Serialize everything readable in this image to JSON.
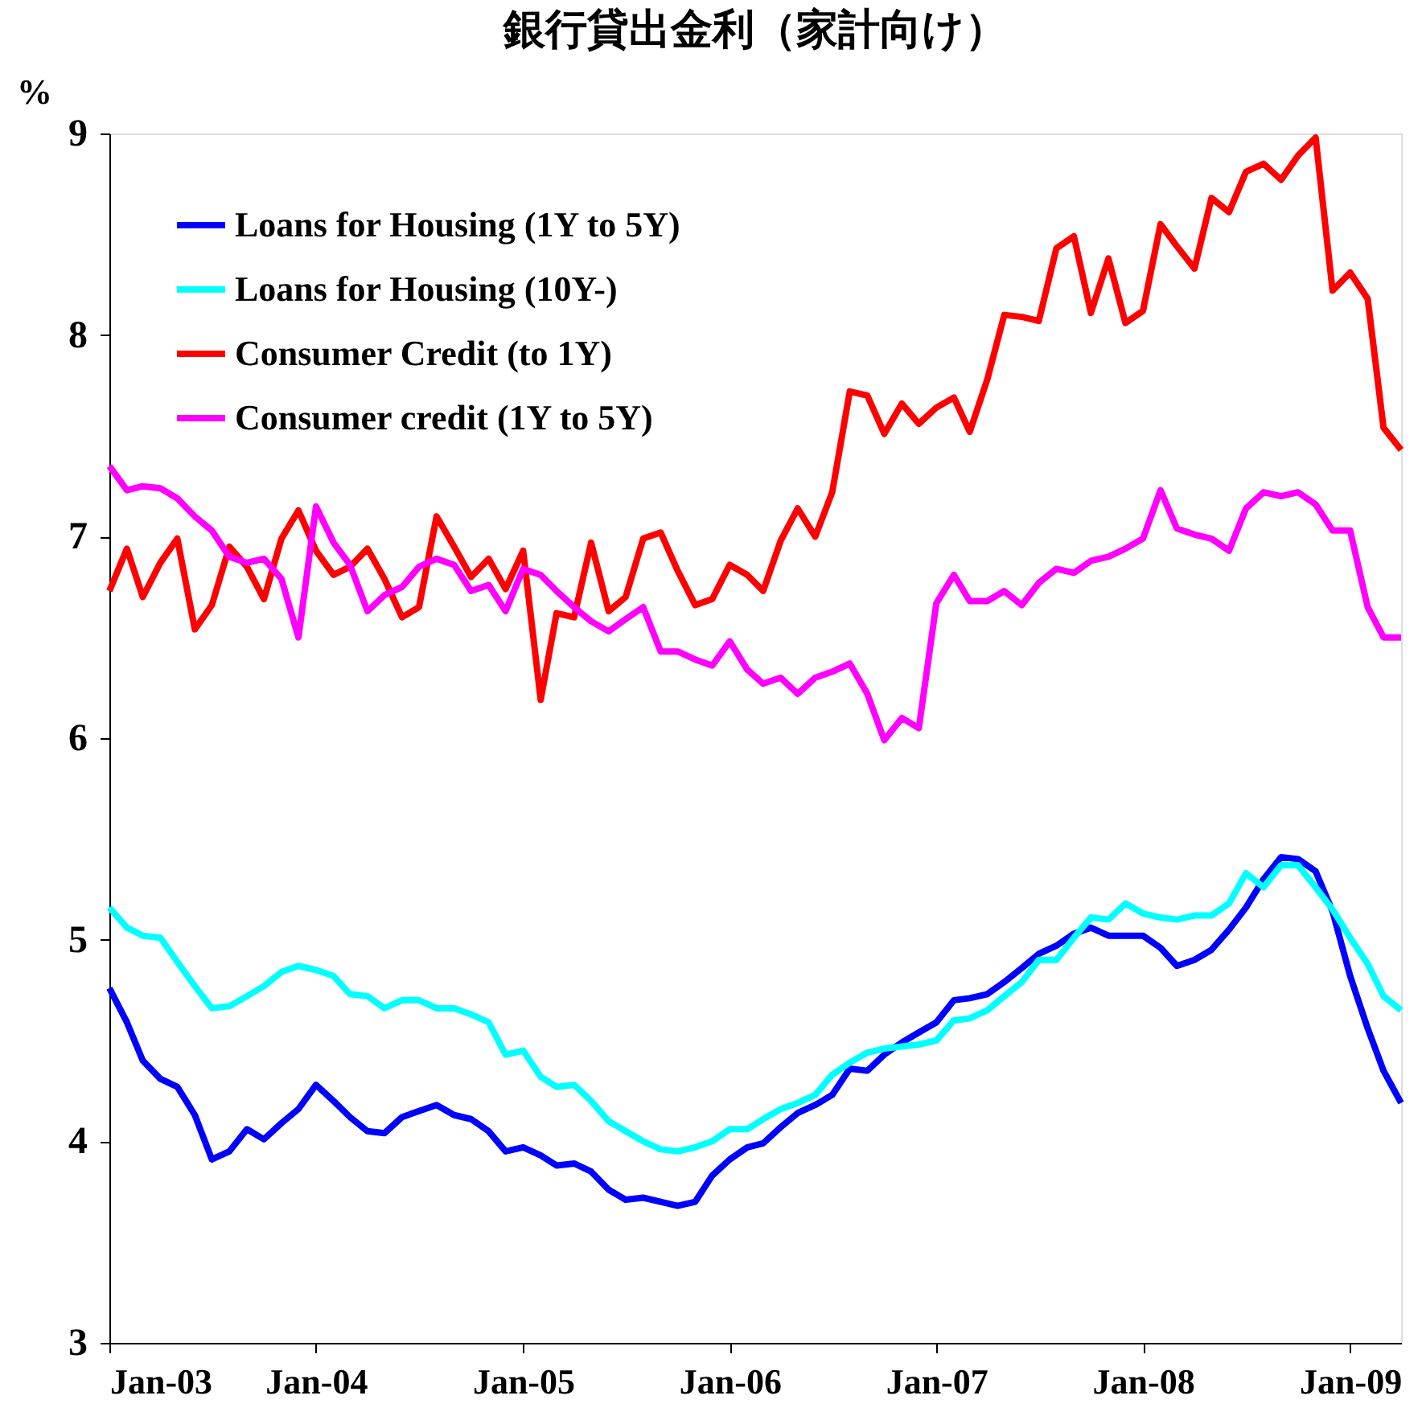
{
  "chart_data": {
    "type": "line",
    "title": "銀行貸出金利（家計向け）",
    "ylabel": "%",
    "x": [
      "2003-01",
      "2003-02",
      "2003-03",
      "2003-04",
      "2003-05",
      "2003-06",
      "2003-07",
      "2003-08",
      "2003-09",
      "2003-10",
      "2003-11",
      "2003-12",
      "2004-01",
      "2004-02",
      "2004-03",
      "2004-04",
      "2004-05",
      "2004-06",
      "2004-07",
      "2004-08",
      "2004-09",
      "2004-10",
      "2004-11",
      "2004-12",
      "2005-01",
      "2005-02",
      "2005-03",
      "2005-04",
      "2005-05",
      "2005-06",
      "2005-07",
      "2005-08",
      "2005-09",
      "2005-10",
      "2005-11",
      "2005-12",
      "2006-01",
      "2006-02",
      "2006-03",
      "2006-04",
      "2006-05",
      "2006-06",
      "2006-07",
      "2006-08",
      "2006-09",
      "2006-10",
      "2006-11",
      "2006-12",
      "2007-01",
      "2007-02",
      "2007-03",
      "2007-04",
      "2007-05",
      "2007-06",
      "2007-07",
      "2007-08",
      "2007-09",
      "2007-10",
      "2007-11",
      "2007-12",
      "2008-01",
      "2008-02",
      "2008-03",
      "2008-04",
      "2008-05",
      "2008-06",
      "2008-07",
      "2008-08",
      "2008-09",
      "2008-10",
      "2008-11",
      "2008-12",
      "2009-01",
      "2009-02",
      "2009-03",
      "2009-04"
    ],
    "series": [
      {
        "name": "Loans for Housing (1Y to 5Y)",
        "color": "#0000ff",
        "values": [
          4.76,
          4.59,
          4.4,
          4.31,
          4.27,
          4.13,
          3.91,
          3.95,
          4.06,
          4.01,
          4.09,
          4.16,
          4.28,
          4.2,
          4.12,
          4.05,
          4.04,
          4.12,
          4.15,
          4.18,
          4.13,
          4.11,
          4.05,
          3.95,
          3.97,
          3.93,
          3.88,
          3.89,
          3.85,
          3.76,
          3.71,
          3.72,
          3.7,
          3.68,
          3.7,
          3.83,
          3.91,
          3.97,
          3.99,
          4.07,
          4.14,
          4.18,
          4.23,
          4.36,
          4.35,
          4.43,
          4.49,
          4.54,
          4.59,
          4.7,
          4.71,
          4.73,
          4.79,
          4.86,
          4.93,
          4.97,
          5.03,
          5.06,
          5.02,
          5.02,
          5.02,
          4.96,
          4.87,
          4.9,
          4.95,
          5.05,
          5.16,
          5.3,
          5.41,
          5.4,
          5.34,
          5.14,
          4.82,
          4.56,
          4.35,
          4.19
        ]
      },
      {
        "name": "Loans for Housing (10Y-)",
        "color": "#00ffff",
        "values": [
          5.16,
          5.06,
          5.02,
          5.01,
          4.89,
          4.77,
          4.66,
          4.67,
          4.72,
          4.77,
          4.84,
          4.87,
          4.85,
          4.82,
          4.73,
          4.72,
          4.66,
          4.7,
          4.7,
          4.66,
          4.66,
          4.63,
          4.59,
          4.43,
          4.45,
          4.32,
          4.27,
          4.28,
          4.2,
          4.1,
          4.05,
          4.0,
          3.96,
          3.95,
          3.97,
          4.0,
          4.06,
          4.06,
          4.11,
          4.16,
          4.19,
          4.23,
          4.33,
          4.39,
          4.44,
          4.46,
          4.47,
          4.48,
          4.5,
          4.6,
          4.61,
          4.65,
          4.72,
          4.79,
          4.9,
          4.9,
          5.01,
          5.11,
          5.1,
          5.18,
          5.13,
          5.11,
          5.1,
          5.12,
          5.12,
          5.18,
          5.33,
          5.26,
          5.37,
          5.37,
          5.26,
          5.15,
          5.01,
          4.88,
          4.72,
          4.65
        ]
      },
      {
        "name": "Consumer Credit (to 1Y)",
        "color": "#ff0000",
        "values": [
          6.73,
          6.94,
          6.7,
          6.87,
          6.99,
          6.54,
          6.66,
          6.95,
          6.85,
          6.69,
          6.99,
          7.13,
          6.93,
          6.81,
          6.85,
          6.94,
          6.79,
          6.6,
          6.65,
          7.1,
          6.95,
          6.8,
          6.89,
          6.74,
          6.93,
          6.19,
          6.62,
          6.6,
          6.97,
          6.63,
          6.7,
          6.99,
          7.02,
          6.83,
          6.66,
          6.69,
          6.86,
          6.81,
          6.73,
          6.98,
          7.14,
          7.0,
          7.22,
          7.72,
          7.7,
          7.51,
          7.66,
          7.56,
          7.64,
          7.69,
          7.52,
          7.78,
          8.1,
          8.09,
          8.07,
          8.43,
          8.49,
          8.11,
          8.38,
          8.06,
          8.12,
          8.55,
          8.44,
          8.33,
          8.68,
          8.61,
          8.81,
          8.85,
          8.77,
          8.89,
          8.98,
          8.22,
          8.31,
          8.18,
          7.54,
          7.43
        ]
      },
      {
        "name": "Consumer credit (1Y to 5Y)",
        "color": "#ff00ff",
        "values": [
          7.35,
          7.23,
          7.25,
          7.24,
          7.19,
          7.1,
          7.03,
          6.9,
          6.87,
          6.89,
          6.79,
          6.5,
          7.15,
          6.97,
          6.86,
          6.63,
          6.71,
          6.75,
          6.85,
          6.89,
          6.86,
          6.73,
          6.76,
          6.63,
          6.84,
          6.81,
          6.73,
          6.65,
          6.58,
          6.53,
          6.59,
          6.65,
          6.43,
          6.43,
          6.39,
          6.36,
          6.48,
          6.34,
          6.27,
          6.3,
          6.22,
          6.3,
          6.33,
          6.37,
          6.22,
          5.99,
          6.1,
          6.05,
          6.67,
          6.81,
          6.68,
          6.68,
          6.73,
          6.66,
          6.77,
          6.84,
          6.82,
          6.88,
          6.9,
          6.94,
          6.99,
          7.23,
          7.04,
          7.01,
          6.99,
          6.93,
          7.14,
          7.22,
          7.2,
          7.22,
          7.16,
          7.03,
          7.03,
          6.65,
          6.5,
          6.5
        ]
      }
    ],
    "xlim": [
      "2003-01",
      "2009-04"
    ],
    "xticks": [
      {
        "value": "2003-01",
        "label": "Jan-03"
      },
      {
        "value": "2004-01",
        "label": "Jan-04"
      },
      {
        "value": "2005-01",
        "label": "Jan-05"
      },
      {
        "value": "2006-01",
        "label": "Jan-06"
      },
      {
        "value": "2007-01",
        "label": "Jan-07"
      },
      {
        "value": "2008-01",
        "label": "Jan-08"
      },
      {
        "value": "2009-01",
        "label": "Jan-09"
      }
    ],
    "ylim": [
      3,
      9
    ],
    "yticks": [
      3,
      4,
      5,
      6,
      7,
      8,
      9
    ],
    "legend": "top left",
    "grid": false
  }
}
